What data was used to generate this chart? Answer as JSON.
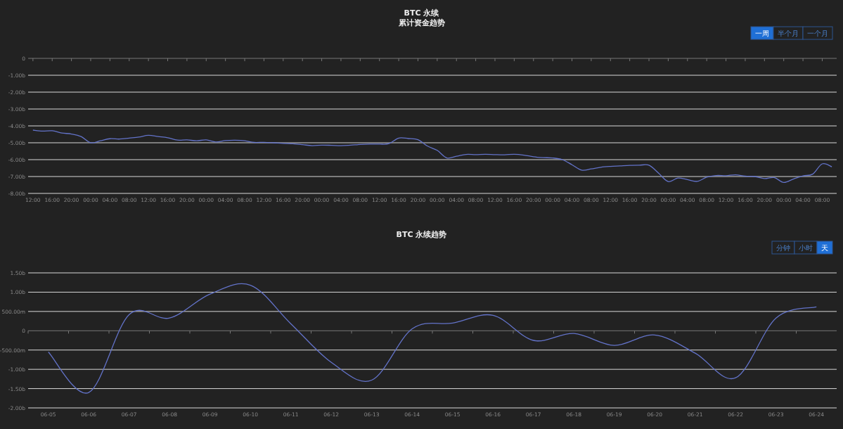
{
  "chart_data": [
    {
      "type": "line",
      "title": "BTC 永续",
      "subtitle": "累计资金趋势",
      "annotations": [
        "一周",
        "半个月",
        "一个月"
      ],
      "grid": "y",
      "color": "#6373c9",
      "categories": [
        "12:00",
        null,
        "16:00",
        null,
        "20:00",
        null,
        "00:00",
        null,
        "04:00",
        null,
        "08:00",
        null,
        "12:00",
        null,
        "16:00",
        null,
        "20:00",
        null,
        "00:00",
        null,
        "04:00",
        null,
        "08:00",
        null,
        "12:00",
        null,
        "16:00",
        null,
        "20:00",
        null,
        "00:00",
        null,
        "04:00",
        null,
        "08:00",
        null,
        "12:00",
        null,
        "16:00",
        null,
        "20:00",
        null,
        "00:00",
        null,
        "04:00",
        null,
        "08:00",
        null,
        "12:00",
        null,
        "16:00",
        null,
        "20:00",
        null,
        "00:00",
        null,
        "04:00",
        null,
        "08:00",
        null,
        "12:00",
        null,
        "16:00",
        null,
        "20:00",
        null,
        "00:00",
        null,
        "04:00",
        null,
        "08:00",
        null,
        "12:00",
        null,
        "16:00",
        null,
        "20:00",
        null,
        "00:00",
        null,
        "04:00",
        null,
        "08:00",
        null
      ],
      "values": [
        -4.25,
        -4.31,
        -4.29,
        -4.42,
        -4.48,
        -4.63,
        -5.0,
        -4.88,
        -4.76,
        -4.78,
        -4.72,
        -4.66,
        -4.56,
        -4.63,
        -4.7,
        -4.84,
        -4.83,
        -4.88,
        -4.83,
        -4.95,
        -4.87,
        -4.85,
        -4.88,
        -4.98,
        -4.97,
        -5.0,
        -5.04,
        -5.06,
        -5.11,
        -5.17,
        -5.14,
        -5.15,
        -5.17,
        -5.14,
        -5.1,
        -5.08,
        -5.08,
        -5.05,
        -4.72,
        -4.75,
        -4.82,
        -5.2,
        -5.45,
        -5.9,
        -5.8,
        -5.69,
        -5.7,
        -5.68,
        -5.7,
        -5.71,
        -5.68,
        -5.73,
        -5.83,
        -5.88,
        -5.9,
        -6.0,
        -6.3,
        -6.62,
        -6.55,
        -6.45,
        -6.4,
        -6.37,
        -6.34,
        -6.33,
        -6.33,
        -6.8,
        -7.3,
        -7.09,
        -7.18,
        -7.29,
        -7.04,
        -6.94,
        -6.95,
        -6.9,
        -6.98,
        -7.0,
        -7.12,
        -7.06,
        -7.35,
        -7.15,
        -6.96,
        -6.86,
        -6.25,
        -6.42
      ],
      "ylim": [
        -8,
        0
      ],
      "yticks": [
        0,
        {
          "value": -1,
          "label": "-1.00b"
        },
        {
          "value": -2,
          "label": "-2.00b"
        },
        {
          "value": -3,
          "label": "-3.00b"
        },
        {
          "value": -4,
          "label": "-4.00b"
        },
        {
          "value": -5,
          "label": "-5.00b"
        },
        {
          "value": -6,
          "label": "-6.00b"
        },
        {
          "value": -7,
          "label": "-7.00b"
        },
        {
          "value": -8,
          "label": "-8.00b"
        }
      ]
    },
    {
      "type": "line",
      "title": "BTC 永续趋势",
      "annotations": [
        "分钟",
        "小时",
        "天"
      ],
      "grid": "y",
      "color": "#6373c9",
      "categories": [
        "06-05",
        "06-06",
        "06-07",
        "06-08",
        "06-09",
        "06-10",
        "06-11",
        "06-12",
        "06-13",
        "06-14",
        "06-15",
        "06-16",
        "06-17",
        "06-18",
        "06-19",
        "06-20",
        "06-21",
        "06-22",
        "06-23",
        "06-24"
      ],
      "values": [
        -550000000,
        -1600000000,
        420000000,
        330000000,
        950000000,
        1180000000,
        180000000,
        -820000000,
        -1280000000,
        50000000,
        200000000,
        400000000,
        -250000000,
        -70000000,
        -380000000,
        -110000000,
        -580000000,
        -1220000000,
        330000000,
        620000000
      ],
      "ylim": [
        -2000000000,
        1500000000
      ],
      "yticks": [
        {
          "value": 1500000000,
          "label": "1.50b"
        },
        {
          "value": 1000000000,
          "label": "1.00b"
        },
        {
          "value": 500000000,
          "label": "500.00m"
        },
        0,
        {
          "value": -500000000,
          "label": "-500.00m"
        },
        {
          "value": -1000000000,
          "label": "-1.00b"
        },
        {
          "value": -1500000000,
          "label": "-1.50b"
        },
        {
          "value": -2000000000,
          "label": "-2.00b"
        }
      ]
    }
  ]
}
